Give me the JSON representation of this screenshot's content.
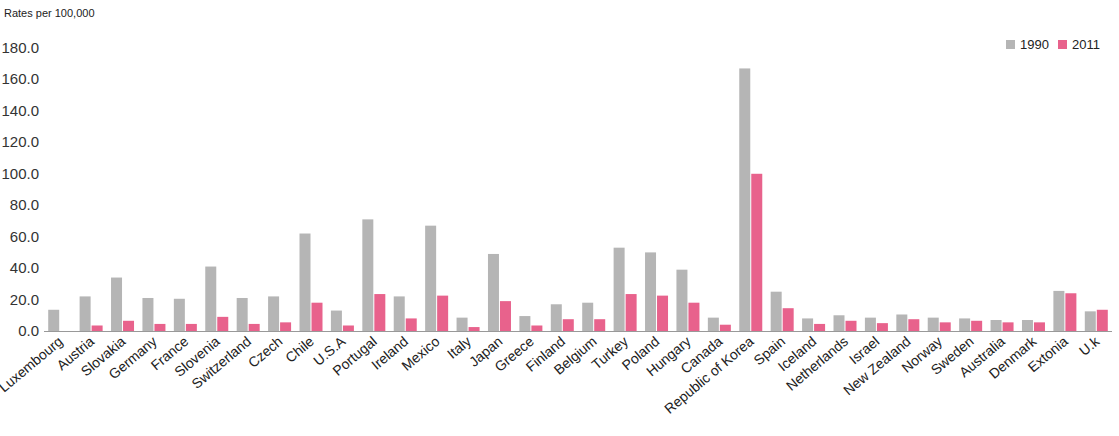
{
  "chart_data": {
    "type": "bar",
    "y_label": "Rates per 100,000",
    "categories": [
      "Luxembourg",
      "Austria",
      "Slovakia",
      "Germany",
      "France",
      "Slovenia",
      "Switzerland",
      "Czech",
      "Chile",
      "U.S.A",
      "Portugal",
      "Ireland",
      "Mexico",
      "Italy",
      "Japan",
      "Greece",
      "Finland",
      "Belgium",
      "Turkey",
      "Poland",
      "Hungary",
      "Canada",
      "Republic of Korea",
      "Spain",
      "Iceland",
      "Netherlands",
      "Israel",
      "New Zealand",
      "Norway",
      "Sweden",
      "Australia",
      "Denmark",
      "Extonia",
      "U.k"
    ],
    "series": [
      {
        "name": "1990",
        "color": "#b5b5b5",
        "values": [
          13.5,
          22,
          34,
          21,
          20.5,
          41,
          21,
          22,
          62,
          13,
          71,
          22,
          67,
          8.5,
          49,
          9.5,
          17,
          18,
          53,
          50,
          39,
          8.5,
          167,
          25,
          8,
          10,
          8.5,
          10.5,
          8.5,
          8,
          7,
          7,
          25.5,
          12.5
        ]
      },
      {
        "name": "2011",
        "color": "#e8628c",
        "values": [
          null,
          3.5,
          6.5,
          4.5,
          4.5,
          9,
          4.5,
          5.5,
          18,
          3.5,
          23.5,
          8,
          22.5,
          2.5,
          19,
          3.5,
          7.5,
          7.5,
          23.5,
          22.5,
          18,
          4,
          100,
          14.5,
          4.5,
          6.5,
          5,
          7.5,
          5.5,
          6.5,
          5.5,
          5.5,
          24,
          13.5
        ]
      }
    ],
    "ylim": [
      0,
      180
    ],
    "yticks": [
      {
        "value": 0,
        "label": "0.0"
      },
      {
        "value": 20,
        "label": "20.0"
      },
      {
        "value": 40,
        "label": "40.0"
      },
      {
        "value": 60,
        "label": "60.0"
      },
      {
        "value": 80,
        "label": "80.0"
      },
      {
        "value": 100,
        "label": "100.0"
      },
      {
        "value": 120,
        "label": "120.0"
      },
      {
        "value": 140,
        "label": "140.0"
      },
      {
        "value": 160,
        "label": "160.0"
      },
      {
        "value": 180,
        "label": "180.0"
      }
    ],
    "grid": false,
    "legend": "top-right"
  }
}
